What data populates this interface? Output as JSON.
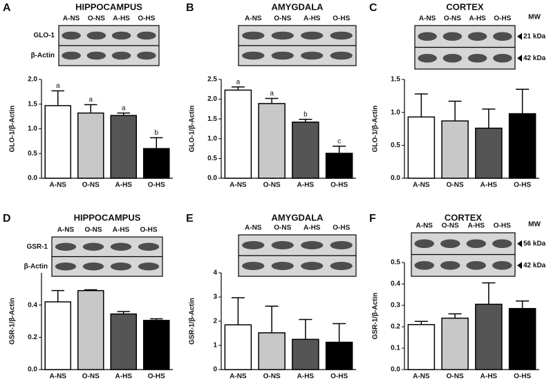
{
  "chart_data": [
    {
      "type": "bar",
      "panel": "A",
      "title": "HIPPOCAMPUS",
      "blot": {
        "lanes": [
          "A-NS",
          "O-NS",
          "A-HS",
          "O-HS"
        ],
        "rows": [
          "GLO-1",
          "β-Actin"
        ]
      },
      "ylabel": "GLO-1/β-Actin",
      "categories": [
        "A-NS",
        "O-NS",
        "A-HS",
        "O-HS"
      ],
      "values": [
        1.47,
        1.32,
        1.27,
        0.6
      ],
      "errors": [
        0.3,
        0.17,
        0.05,
        0.22
      ],
      "value_labels": [
        "a",
        "a",
        "a",
        "b"
      ],
      "colors": [
        "#ffffff",
        "#c8c8c8",
        "#555555",
        "#000000"
      ],
      "ylim": [
        0,
        2.0
      ],
      "yticks": [
        {
          "value": 0,
          "label": "0.0"
        },
        0.5,
        {
          "value": 1,
          "label": "1.0"
        },
        1.5,
        {
          "value": 2,
          "label": "2.0"
        }
      ]
    },
    {
      "type": "bar",
      "panel": "B",
      "title": "AMYGDALA",
      "blot": {
        "lanes": [
          "A-NS",
          "O-NS",
          "A-HS",
          "O-HS"
        ]
      },
      "ylabel": "GLO-1/β-Actin",
      "categories": [
        "A-NS",
        "O-NS",
        "A-HS",
        "O-HS"
      ],
      "values": [
        2.23,
        1.89,
        1.42,
        0.63
      ],
      "errors": [
        0.08,
        0.13,
        0.07,
        0.18
      ],
      "value_labels": [
        "a",
        "a",
        "b",
        "c"
      ],
      "colors": [
        "#ffffff",
        "#c8c8c8",
        "#555555",
        "#000000"
      ],
      "ylim": [
        0,
        2.5
      ],
      "yticks": [
        {
          "value": 0,
          "label": "0.0"
        },
        0.5,
        {
          "value": 1,
          "label": "1.0"
        },
        1.5,
        {
          "value": 2,
          "label": "2.0"
        },
        2.5
      ]
    },
    {
      "type": "bar",
      "panel": "C",
      "title": "CORTEX",
      "blot": {
        "lanes": [
          "A-NS",
          "O-NS",
          "A-HS",
          "O-HS"
        ],
        "mw": "MW",
        "markers": [
          "21 kDa",
          "42 kDa"
        ]
      },
      "ylabel": "GLO-1/β-Actin",
      "categories": [
        "A-NS",
        "O-NS",
        "A-HS",
        "O-HS"
      ],
      "values": [
        0.93,
        0.87,
        0.76,
        0.98
      ],
      "errors": [
        0.35,
        0.3,
        0.29,
        0.37
      ],
      "colors": [
        "#ffffff",
        "#c8c8c8",
        "#555555",
        "#000000"
      ],
      "ylim": [
        0,
        1.5
      ],
      "yticks": [
        {
          "value": 0,
          "label": "0.0"
        },
        0.5,
        {
          "value": 1,
          "label": "1.0"
        },
        1.5
      ]
    },
    {
      "type": "bar",
      "panel": "D",
      "title": "HIPPOCAMPUS",
      "blot": {
        "lanes": [
          "A-NS",
          "O-NS",
          "A-HS",
          "O-HS"
        ],
        "rows": [
          "GSR-1",
          "β-Actin"
        ]
      },
      "ylabel": "GSR-1/β-Actin",
      "categories": [
        "A-NS",
        "O-NS",
        "A-HS",
        "O-HS"
      ],
      "values": [
        0.42,
        0.49,
        0.345,
        0.305
      ],
      "errors": [
        0.07,
        0.005,
        0.015,
        0.01
      ],
      "colors": [
        "#ffffff",
        "#c8c8c8",
        "#555555",
        "#000000"
      ],
      "ylim": [
        0,
        0.6
      ],
      "yticks": [
        {
          "value": 0,
          "label": "0.0"
        },
        0.2,
        0.4
      ]
    },
    {
      "type": "bar",
      "panel": "E",
      "title": "AMYGDALA",
      "blot": {
        "lanes": [
          "A-NS",
          "O-NS",
          "A-HS",
          "O-HS"
        ]
      },
      "ylabel": "GSR-1/β-Actin",
      "categories": [
        "A-NS",
        "O-NS",
        "A-HS",
        "O-HS"
      ],
      "values": [
        1.85,
        1.52,
        1.25,
        1.13
      ],
      "errors": [
        1.12,
        1.1,
        0.82,
        0.77
      ],
      "colors": [
        "#ffffff",
        "#c8c8c8",
        "#555555",
        "#000000"
      ],
      "ylim": [
        0,
        4
      ],
      "yticks": [
        0,
        1,
        2,
        3,
        4
      ]
    },
    {
      "type": "bar",
      "panel": "F",
      "title": "CORTEX",
      "blot": {
        "lanes": [
          "A-NS",
          "O-NS",
          "A-HS",
          "O-HS"
        ],
        "mw": "MW",
        "markers": [
          "56 kDa",
          "42 kDa"
        ]
      },
      "ylabel": "GSR-1/β-Actin",
      "categories": [
        "A-NS",
        "O-NS",
        "A-HS",
        "O-HS"
      ],
      "values": [
        0.21,
        0.24,
        0.305,
        0.285
      ],
      "errors": [
        0.015,
        0.02,
        0.1,
        0.035
      ],
      "colors": [
        "#ffffff",
        "#c8c8c8",
        "#555555",
        "#000000"
      ],
      "ylim": [
        0,
        0.5
      ],
      "yticks": [
        {
          "value": 0,
          "label": "0.0"
        },
        0.1,
        0.2,
        0.3,
        0.4,
        0.5
      ]
    }
  ]
}
